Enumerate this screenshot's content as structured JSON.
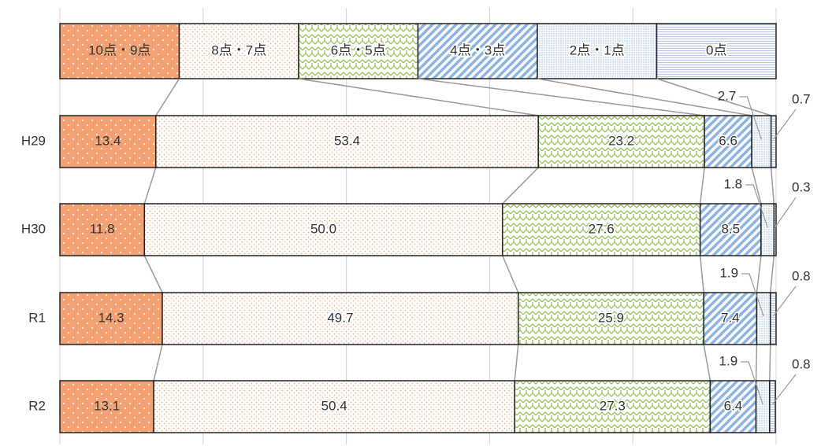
{
  "chart_data": {
    "type": "bar_stacked_100",
    "categories": [
      "H29",
      "H30",
      "R1",
      "R2"
    ],
    "series": [
      {
        "name": "10点・9点",
        "color": "#f4a273",
        "values": [
          13.4,
          11.8,
          14.3,
          13.1
        ]
      },
      {
        "name": "8点・7点",
        "color": "#f4a273",
        "values": [
          53.4,
          50.0,
          49.7,
          50.4
        ],
        "value_labels": [
          "53.4",
          "50.0",
          "49.7",
          "50.4"
        ]
      },
      {
        "name": "6点・5点",
        "color": "#8dc04f",
        "values": [
          23.2,
          27.6,
          25.9,
          27.3
        ]
      },
      {
        "name": "4点・3点",
        "color": "#8db4e2",
        "values": [
          6.6,
          8.5,
          7.4,
          6.4
        ]
      },
      {
        "name": "2点・1点",
        "color": "#8db4e2",
        "values": [
          2.7,
          1.8,
          1.9,
          1.9
        ]
      },
      {
        "name": "0点",
        "color": "#b4c7e7",
        "values": [
          0.7,
          0.3,
          0.8,
          0.8
        ]
      }
    ],
    "xlim": [
      0,
      100
    ],
    "xticks": [
      0,
      20,
      40,
      60,
      80,
      100
    ],
    "grid": true
  }
}
